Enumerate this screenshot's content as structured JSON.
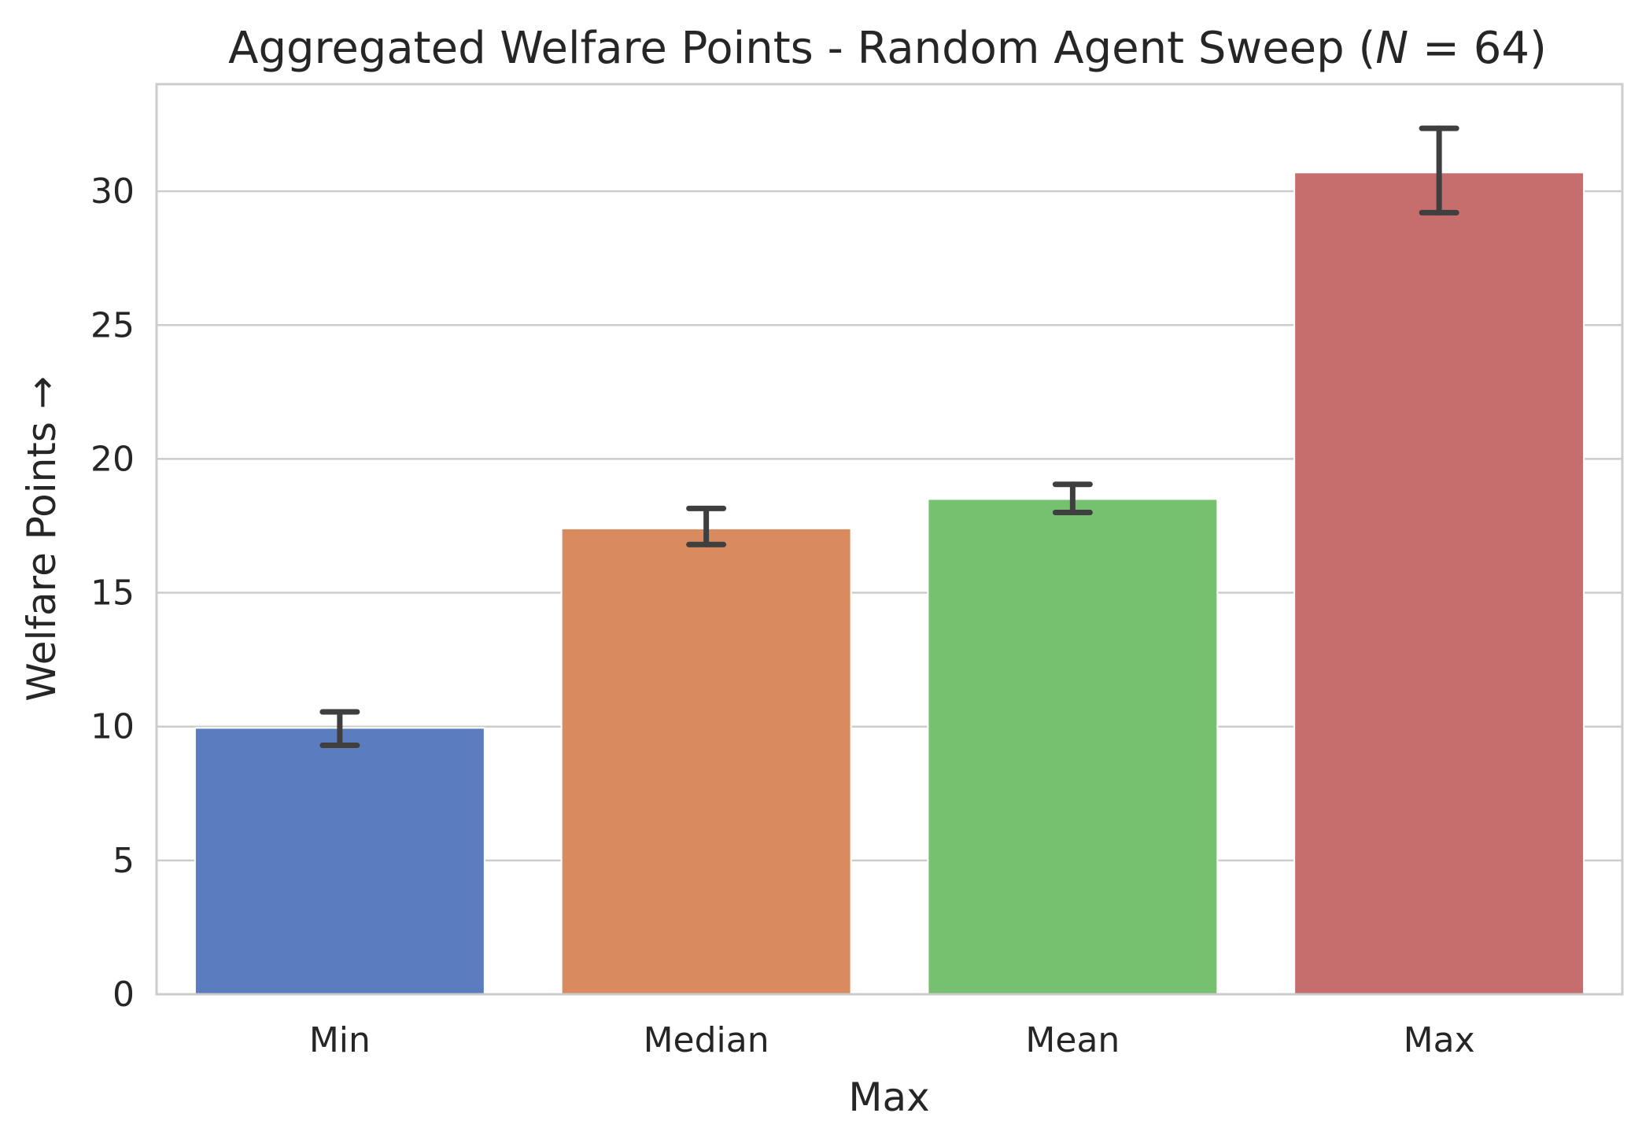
{
  "chart_data": {
    "type": "bar",
    "title": "Aggregated Welfare Points - Random Agent Sweep (",
    "title_var": "N",
    "title_rest": " = 64)",
    "xlabel": "Max",
    "ylabel": "Welfare Points →",
    "categories": [
      "Min",
      "Median",
      "Mean",
      "Max"
    ],
    "values": [
      9.95,
      17.4,
      18.5,
      30.7
    ],
    "error_low": [
      9.3,
      16.8,
      18.0,
      29.2
    ],
    "error_high": [
      10.55,
      18.15,
      19.05,
      32.35
    ],
    "colors": [
      "#5b7dbf",
      "#d98a5f",
      "#76c170",
      "#c66d6d"
    ],
    "ylim": [
      0,
      34
    ],
    "yticks": [
      0,
      5,
      10,
      15,
      20,
      25,
      30
    ],
    "grid": "horizontal"
  }
}
